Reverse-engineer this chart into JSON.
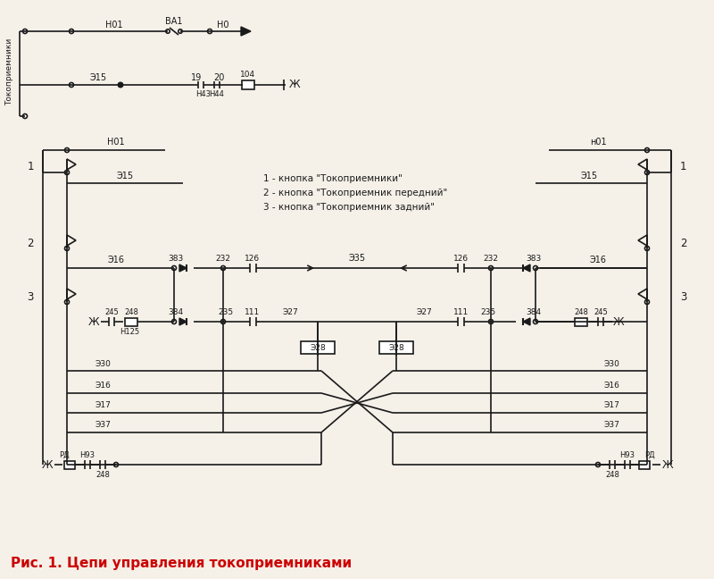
{
  "title": "Рис. 1. Цепи управления токоприемниками",
  "title_color": "#cc0000",
  "bg_color": "#f5f0e8",
  "line_color": "#1a1a1a",
  "legend_lines": [
    "1 - кнопка \"Токоприемники\"",
    "2 - кнопка \"Токоприемник передний\"",
    "3 - кнопка \"Токоприемник задний\""
  ],
  "top_label": "Токоприемники"
}
